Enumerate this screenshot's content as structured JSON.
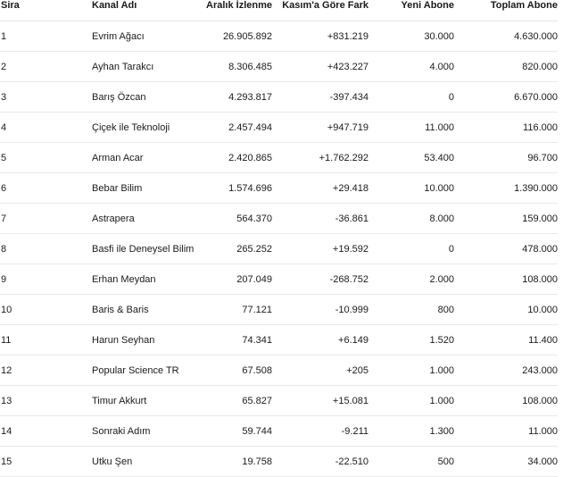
{
  "table": {
    "headers": {
      "rank": "Sira",
      "channel": "Kanal Adı",
      "views": "Aralık İzlenme",
      "diff": "Kasım'a Göre Fark",
      "new_subs": "Yeni Abone",
      "total_subs": "Toplam Abone"
    },
    "rows": [
      {
        "rank": "1",
        "channel": "Evrim Ağacı",
        "views": "26.905.892",
        "diff": "+831.219",
        "new_subs": "30.000",
        "total_subs": "4.630.000"
      },
      {
        "rank": "2",
        "channel": "Ayhan Tarakcı",
        "views": "8.306.485",
        "diff": "+423.227",
        "new_subs": "4.000",
        "total_subs": "820.000"
      },
      {
        "rank": "3",
        "channel": "Barış Özcan",
        "views": "4.293.817",
        "diff": "-397.434",
        "new_subs": "0",
        "total_subs": "6.670.000"
      },
      {
        "rank": "4",
        "channel": "Çiçek ile Teknoloji",
        "views": "2.457.494",
        "diff": "+947.719",
        "new_subs": "11.000",
        "total_subs": "116.000"
      },
      {
        "rank": "5",
        "channel": "Arman Acar",
        "views": "2.420.865",
        "diff": "+1.762.292",
        "new_subs": "53.400",
        "total_subs": "96.700"
      },
      {
        "rank": "6",
        "channel": "Bebar Bilim",
        "views": "1.574.696",
        "diff": "+29.418",
        "new_subs": "10.000",
        "total_subs": "1.390.000"
      },
      {
        "rank": "7",
        "channel": "Astrapera",
        "views": "564.370",
        "diff": "-36.861",
        "new_subs": "8.000",
        "total_subs": "159.000"
      },
      {
        "rank": "8",
        "channel": "Basfi ile Deneysel Bilim",
        "views": "265.252",
        "diff": "+19.592",
        "new_subs": "0",
        "total_subs": "478.000"
      },
      {
        "rank": "9",
        "channel": "Erhan Meydan",
        "views": "207.049",
        "diff": "-268.752",
        "new_subs": "2.000",
        "total_subs": "108.000"
      },
      {
        "rank": "10",
        "channel": "Baris & Baris",
        "views": "77.121",
        "diff": "-10.999",
        "new_subs": "800",
        "total_subs": "10.000"
      },
      {
        "rank": "11",
        "channel": "Harun Seyhan",
        "views": "74.341",
        "diff": "+6.149",
        "new_subs": "1.520",
        "total_subs": "11.400"
      },
      {
        "rank": "12",
        "channel": "Popular Science TR",
        "views": "67.508",
        "diff": "+205",
        "new_subs": "1.000",
        "total_subs": "243.000"
      },
      {
        "rank": "13",
        "channel": "Timur Akkurt",
        "views": "65.827",
        "diff": "+15.081",
        "new_subs": "1.000",
        "total_subs": "108.000"
      },
      {
        "rank": "14",
        "channel": "Sonraki Adım",
        "views": "59.744",
        "diff": "-9.211",
        "new_subs": "1.300",
        "total_subs": "11.000"
      },
      {
        "rank": "15",
        "channel": "Utku Şen",
        "views": "19.758",
        "diff": "-22.510",
        "new_subs": "500",
        "total_subs": "34.000"
      }
    ]
  }
}
